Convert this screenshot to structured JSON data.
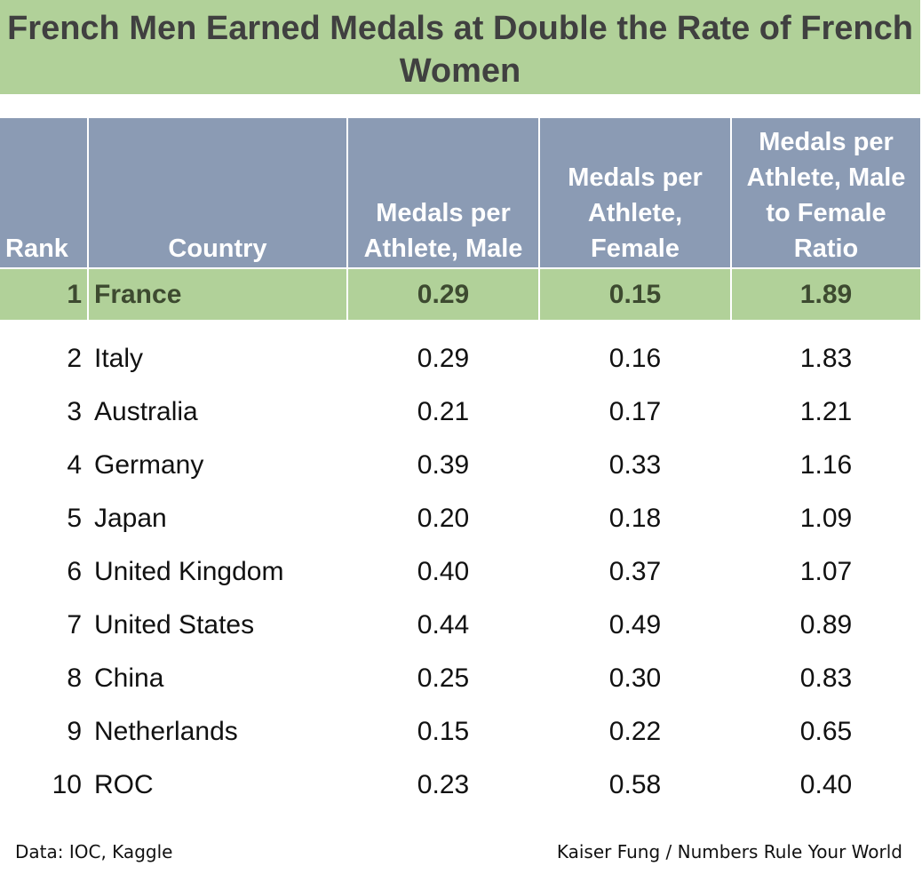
{
  "chart_data": {
    "type": "table",
    "title": "French Men Earned Medals at Double the Rate of French Women",
    "columns": [
      "Rank",
      "Country",
      "Medals per Athlete, Male",
      "Medals per Athlete, Female",
      "Medals per Athlete, Male to Female Ratio"
    ],
    "rows": [
      {
        "rank": "1",
        "country": "France",
        "male": "0.29",
        "female": "0.15",
        "ratio": "1.89"
      },
      {
        "rank": "2",
        "country": "Italy",
        "male": "0.29",
        "female": "0.16",
        "ratio": "1.83"
      },
      {
        "rank": "3",
        "country": "Australia",
        "male": "0.21",
        "female": "0.17",
        "ratio": "1.21"
      },
      {
        "rank": "4",
        "country": "Germany",
        "male": "0.39",
        "female": "0.33",
        "ratio": "1.16"
      },
      {
        "rank": "5",
        "country": "Japan",
        "male": "0.20",
        "female": "0.18",
        "ratio": "1.09"
      },
      {
        "rank": "6",
        "country": "United Kingdom",
        "male": "0.40",
        "female": "0.37",
        "ratio": "1.07"
      },
      {
        "rank": "7",
        "country": "United States",
        "male": "0.44",
        "female": "0.49",
        "ratio": "0.89"
      },
      {
        "rank": "8",
        "country": "China",
        "male": "0.25",
        "female": "0.30",
        "ratio": "0.83"
      },
      {
        "rank": "9",
        "country": "Netherlands",
        "male": "0.15",
        "female": "0.22",
        "ratio": "0.65"
      },
      {
        "rank": "10",
        "country": "ROC",
        "male": "0.23",
        "female": "0.58",
        "ratio": "0.40"
      }
    ],
    "highlighted_row": "France"
  },
  "footer": {
    "source": "Data: IOC, Kaggle",
    "credit": "Kaiser Fung / Numbers Rule Your World"
  },
  "colors": {
    "title_band": "#b1d199",
    "header": "#8b9bb4",
    "highlight_text": "#3d4a30"
  }
}
